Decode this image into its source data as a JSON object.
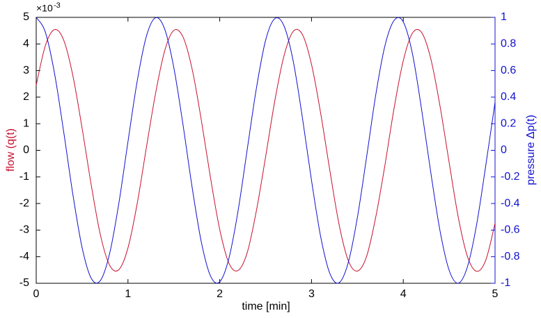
{
  "chart_data": {
    "type": "line",
    "xlabel": "time [min]",
    "ylabel": "flow (q(t)",
    "y2label": "pressure Δp(t)",
    "y_multiplier": {
      "base": "×10",
      "exponent": "-3"
    },
    "x": [
      0,
      0.1,
      0.2,
      0.3,
      0.4,
      0.5,
      0.6,
      0.7,
      0.8,
      0.9,
      1,
      1.1,
      1.2,
      1.3,
      1.4,
      1.5,
      1.6,
      1.7,
      1.8,
      1.9,
      2,
      2.1,
      2.2,
      2.3,
      2.4,
      2.5,
      2.6,
      2.7,
      2.8,
      2.9,
      3,
      3.1,
      3.2,
      3.3,
      3.4,
      3.5,
      3.6,
      3.7,
      3.8,
      3.9,
      4,
      4.1,
      4.2,
      4.3,
      4.4,
      4.5,
      4.6,
      4.7,
      4.8,
      4.9,
      5
    ],
    "series": [
      {
        "name": "flow",
        "color": "#c8102e",
        "axis": "y",
        "values": [
          2.45,
          3.94,
          4.54,
          4.14,
          2.8,
          0.83,
          -1.31,
          -3.19,
          -4.32,
          -4.49,
          -3.67,
          -2.01,
          0.09,
          2.13,
          3.74,
          4.51,
          4.26,
          3.04,
          1.12,
          -1.05,
          -2.98,
          -4.24,
          -4.52,
          -3.84,
          -2.26,
          -0.24,
          1.86,
          3.55,
          4.47,
          4.36,
          3.23,
          1.39,
          -0.76,
          -2.78,
          -4.14,
          -4.54,
          -3.99,
          -2.51,
          -0.56,
          1.59,
          3.37,
          4.41,
          4.43,
          3.44,
          1.67,
          -0.46,
          -2.53,
          -4,
          -4.55,
          -4.12,
          -2.74
        ]
      },
      {
        "name": "pressure",
        "color": "#1010d0",
        "axis": "y2",
        "values": [
          1,
          0.888,
          0.577,
          0.137,
          -0.334,
          -0.731,
          -0.963,
          -0.979,
          -0.776,
          -0.401,
          0.065,
          0.518,
          0.856,
          0.997,
          0.912,
          0.62,
          0.191,
          -0.282,
          -0.692,
          -0.946,
          -0.989,
          -0.812,
          -0.454,
          0.009,
          0.469,
          0.828,
          0.991,
          0.936,
          0.673,
          0.249,
          -0.226,
          -0.65,
          -0.926,
          -0.996,
          -0.845,
          -0.505,
          -0.051,
          0.417,
          0.786,
          0.977,
          0.966,
          0.726,
          0.306,
          -0.168,
          -0.604,
          -0.902,
          -0.999,
          -0.874,
          -0.555,
          -0.109,
          0.362
        ]
      }
    ],
    "xlim": [
      0,
      5
    ],
    "xticks": [
      0,
      1,
      2,
      3,
      4,
      5
    ],
    "ylim": [
      -5,
      5
    ],
    "yticks": [
      -5,
      -4,
      -3,
      -2,
      -1,
      0,
      1,
      2,
      3,
      4,
      5
    ],
    "y2lim": [
      -1,
      1
    ],
    "y2ticks": [
      -1,
      -0.8,
      -0.6,
      -0.4,
      -0.2,
      0,
      0.2,
      0.4,
      0.6,
      0.8,
      1
    ],
    "grid": false
  }
}
